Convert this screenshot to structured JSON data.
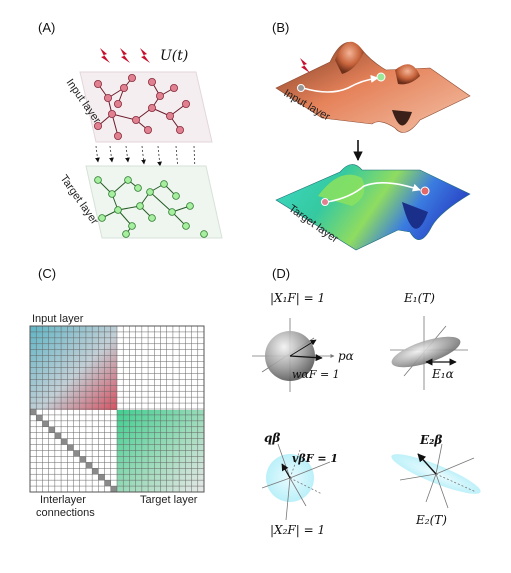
{
  "panels": {
    "a": {
      "label": "(A)",
      "input_label": "Input layer",
      "target_label": "Target layer",
      "control_label": "U(t)",
      "bolt_count": 3
    },
    "b": {
      "label": "(B)",
      "input_label": "Input layer",
      "target_label": "Target layer"
    },
    "c": {
      "label": "(C)",
      "input_label": "Input layer",
      "interlayer_label_line1": "Interlayer",
      "interlayer_label_line2": "connections",
      "target_label": "Target layer",
      "grid_size": 28
    },
    "d": {
      "label": "(D)",
      "x1f": "|X₁F| = 1",
      "p_alpha": "pα",
      "w_alpha_f": "wαF = 1",
      "e1t": "E₁(T)",
      "e1_alpha": "E₁α",
      "q_beta": "qβ",
      "v_beta_f": "vβF = 1",
      "x2f": "|X₂F| = 1",
      "e2_beta": "E₂β",
      "e2t": "E₂(T)"
    }
  },
  "colors": {
    "input_node": "#e08090",
    "target_node": "#8fe08f",
    "control_bolt": "#c8102e",
    "surface_input": "#c8643c",
    "surface_target": "#2fbfa0"
  }
}
